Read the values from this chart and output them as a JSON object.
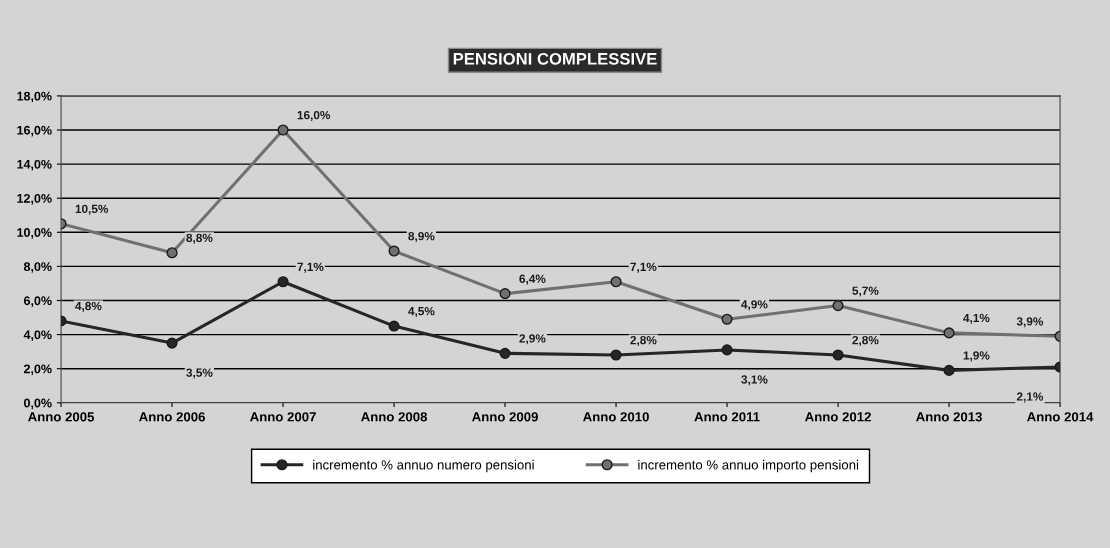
{
  "chart_data": {
    "type": "line",
    "title": "PENSIONI COMPLESSIVE",
    "categories": [
      "Anno 2005",
      "Anno 2006",
      "Anno 2007",
      "Anno 2008",
      "Anno 2009",
      "Anno 2010",
      "Anno 2011",
      "Anno 2012",
      "Anno 2013",
      "Anno 2014"
    ],
    "series": [
      {
        "name": "incremento % annuo numero pensioni",
        "color": "#262626",
        "values": [
          4.8,
          3.5,
          7.1,
          4.5,
          2.9,
          2.8,
          3.1,
          2.8,
          1.9,
          2.1
        ],
        "value_labels": [
          "4,8%",
          "3,5%",
          "7,1%",
          "4,5%",
          "2,9%",
          "2,8%",
          "3,1%",
          "2,8%",
          "1,9%",
          "2,1%"
        ]
      },
      {
        "name": "incremento % annuo importo pensioni",
        "color": "#707070",
        "values": [
          10.5,
          8.8,
          16.0,
          8.9,
          6.4,
          7.1,
          4.9,
          5.7,
          4.1,
          3.9
        ],
        "value_labels": [
          "10,5%",
          "8,8%",
          "16,0%",
          "8,9%",
          "6,4%",
          "7,1%",
          "4,9%",
          "5,7%",
          "4,1%",
          "3,9%"
        ]
      }
    ],
    "ylim": [
      0,
      18
    ],
    "yticks": [
      {
        "value": 0,
        "label": "0,0%"
      },
      {
        "value": 2,
        "label": "2,0%"
      },
      {
        "value": 4,
        "label": "4,0%"
      },
      {
        "value": 6,
        "label": "6,0%"
      },
      {
        "value": 8,
        "label": "8,0%"
      },
      {
        "value": 10,
        "label": "10,0%"
      },
      {
        "value": 12,
        "label": "12,0%"
      },
      {
        "value": 14,
        "label": "14,0%"
      },
      {
        "value": 16,
        "label": "16,0%"
      },
      {
        "value": 18,
        "label": "18,0%"
      }
    ],
    "grid": "y",
    "legend": "bottom",
    "marker": "circle",
    "line_style": "solid"
  }
}
